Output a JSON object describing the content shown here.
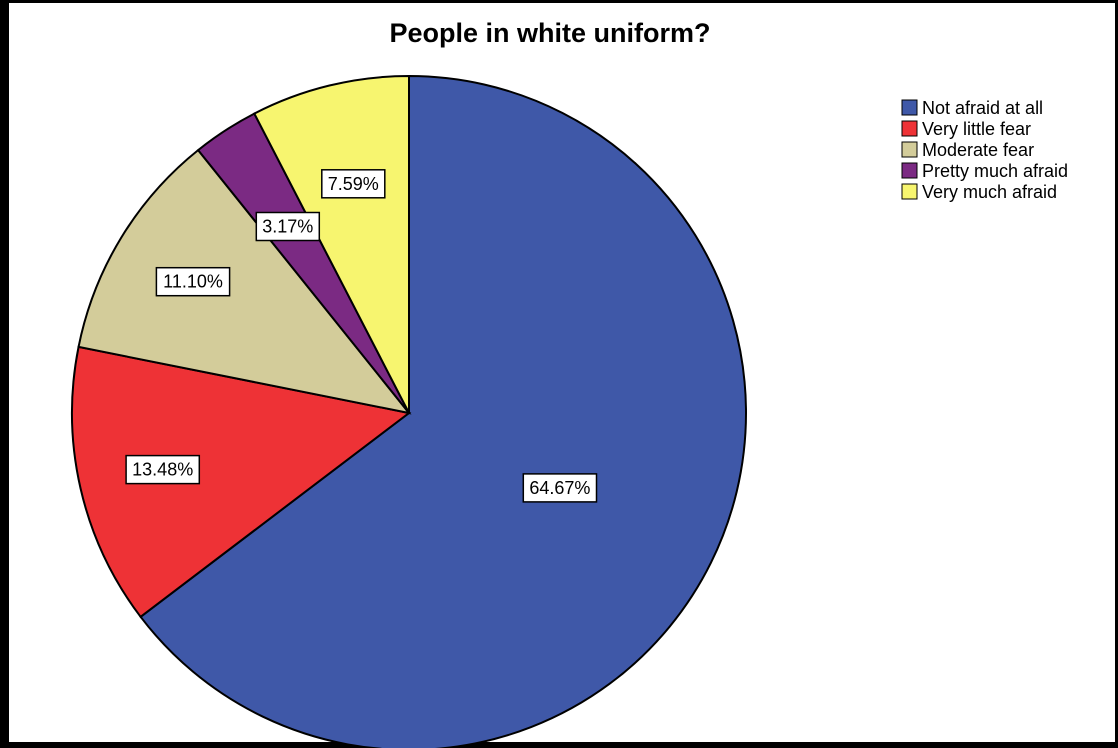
{
  "chart_data": {
    "type": "pie",
    "title": "People in white uniform?",
    "slices": [
      {
        "label": "Not afraid at all",
        "value": 64.67,
        "display": "64.67%",
        "color": "#3F58A8"
      },
      {
        "label": "Very little fear",
        "value": 13.48,
        "display": "13.48%",
        "color": "#EE3236"
      },
      {
        "label": "Moderate fear",
        "value": 11.1,
        "display": "11.10%",
        "color": "#D3CC9A"
      },
      {
        "label": "Pretty much afraid",
        "value": 3.17,
        "display": "3.17%",
        "color": "#7B2A83"
      },
      {
        "label": "Very much afraid",
        "value": 7.59,
        "display": "7.59%",
        "color": "#F7F56F"
      }
    ],
    "start": "12 o'clock",
    "direction": "clockwise",
    "legend_position": "top-right"
  }
}
